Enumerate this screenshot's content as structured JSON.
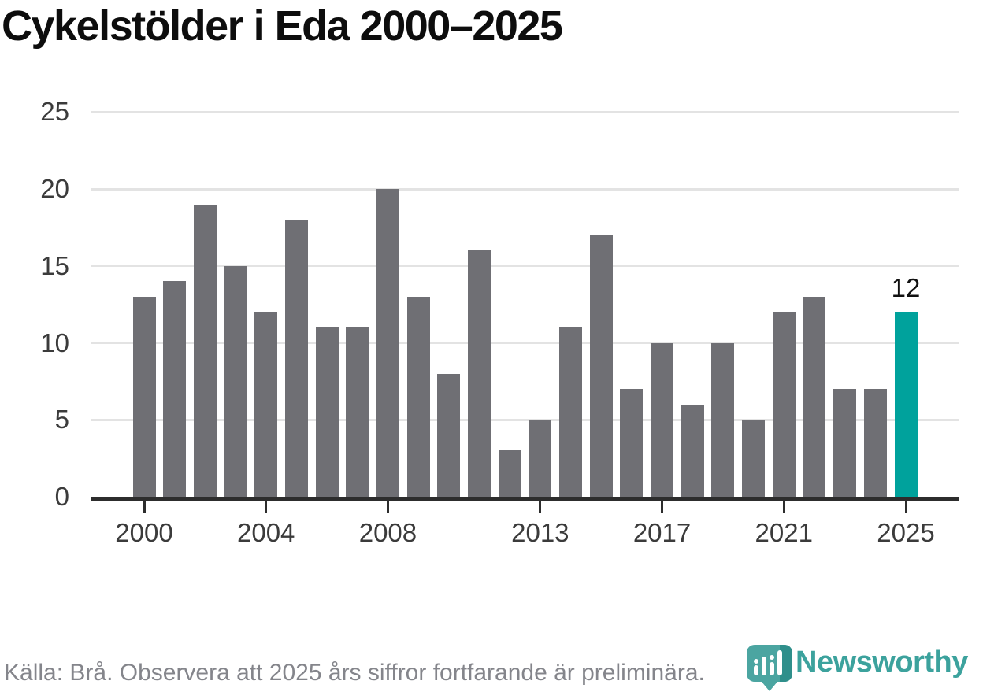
{
  "chart_data": {
    "type": "bar",
    "title": "Cykelstölder i Eda 2000–2025",
    "categories": [
      2000,
      2001,
      2002,
      2003,
      2004,
      2005,
      2006,
      2007,
      2008,
      2009,
      2010,
      2011,
      2012,
      2013,
      2014,
      2015,
      2016,
      2017,
      2018,
      2019,
      2020,
      2021,
      2022,
      2023,
      2024,
      2025
    ],
    "values": [
      13,
      14,
      19,
      15,
      12,
      18,
      11,
      11,
      20,
      13,
      8,
      16,
      3,
      5,
      11,
      17,
      7,
      10,
      6,
      10,
      5,
      12,
      13,
      7,
      7,
      12
    ],
    "highlight_category": 2025,
    "highlight_index": 25,
    "highlight_label": "12",
    "ylim": [
      0,
      25
    ],
    "yticks": [
      0,
      5,
      10,
      15,
      20,
      25
    ],
    "xtick_labels": [
      2000,
      2004,
      2008,
      2013,
      2017,
      2021,
      2025
    ],
    "grid": true,
    "legend": "none",
    "xlabel": "",
    "ylabel": ""
  },
  "colors": {
    "bar": "#6F6F74",
    "highlight": "#00A29C",
    "grid": "#E3E3E3",
    "axis": "#2D2D2D",
    "tick_label": "#3B3B3B",
    "title": "#0D0D0D",
    "source_text": "#84858B",
    "brand_text": "#3CA29D",
    "pin": "#4BA5A1",
    "pin_shadow": "#2F8F8B"
  },
  "footer": {
    "source": "Källa: Brå. Observera att 2025 års siffror fortfarande är preliminära.",
    "brand": "Newsworthy"
  }
}
